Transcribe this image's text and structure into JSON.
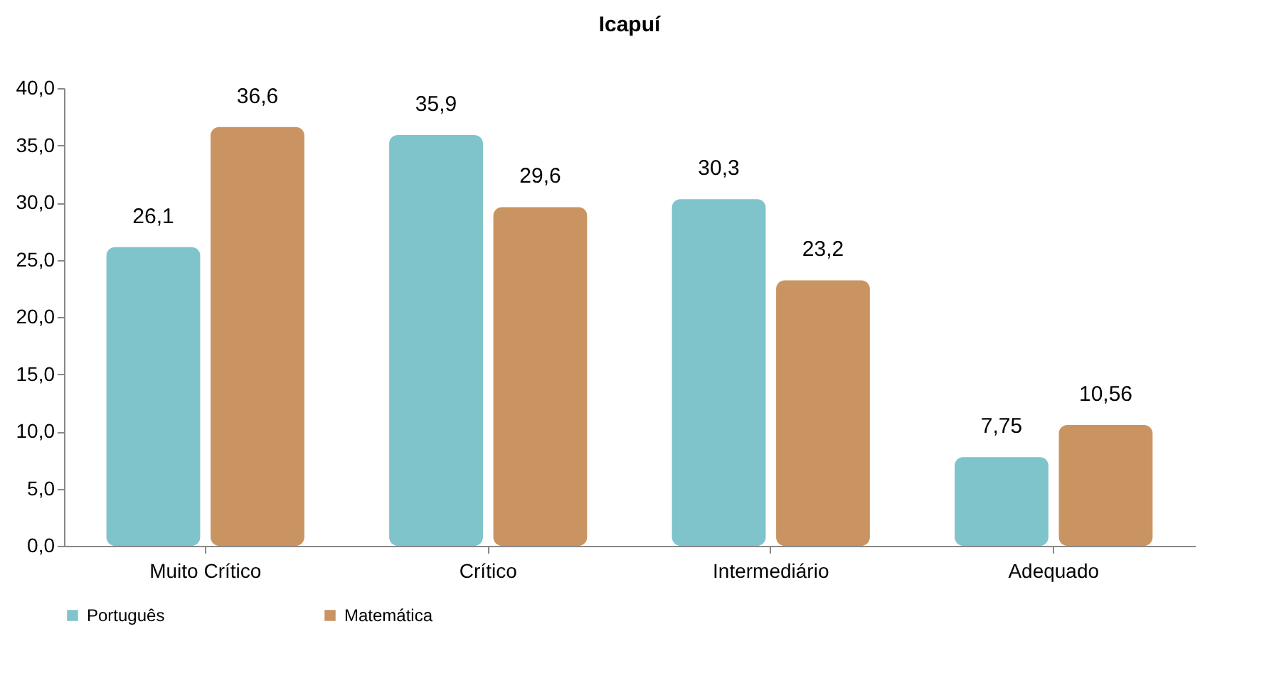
{
  "chart_data": {
    "type": "bar",
    "title": "Icapuí",
    "categories": [
      "Muito Crítico",
      "Crítico",
      "Intermediário",
      "Adequado"
    ],
    "series": [
      {
        "name": "Português",
        "color": "#7fc3cb",
        "values": [
          26.1,
          35.9,
          30.3,
          7.75
        ],
        "value_labels": [
          "26,1",
          "35,9",
          "30,3",
          "7,75"
        ]
      },
      {
        "name": "Matemática",
        "color": "#c99461",
        "values": [
          36.6,
          29.6,
          23.2,
          10.56
        ],
        "value_labels": [
          "36,6",
          "29,6",
          "23,2",
          "10,56"
        ]
      }
    ],
    "ylim": [
      0,
      40
    ],
    "yticks": [
      {
        "value": 0,
        "label": "0,0"
      },
      {
        "value": 5,
        "label": "5,0"
      },
      {
        "value": 10,
        "label": "10,0"
      },
      {
        "value": 15,
        "label": "15,0"
      },
      {
        "value": 20,
        "label": "20,0"
      },
      {
        "value": 25,
        "label": "25,0"
      },
      {
        "value": 30,
        "label": "30,0"
      },
      {
        "value": 35,
        "label": "35,0"
      },
      {
        "value": 40,
        "label": "40,0"
      }
    ],
    "grid": false,
    "legend": "bottom"
  }
}
